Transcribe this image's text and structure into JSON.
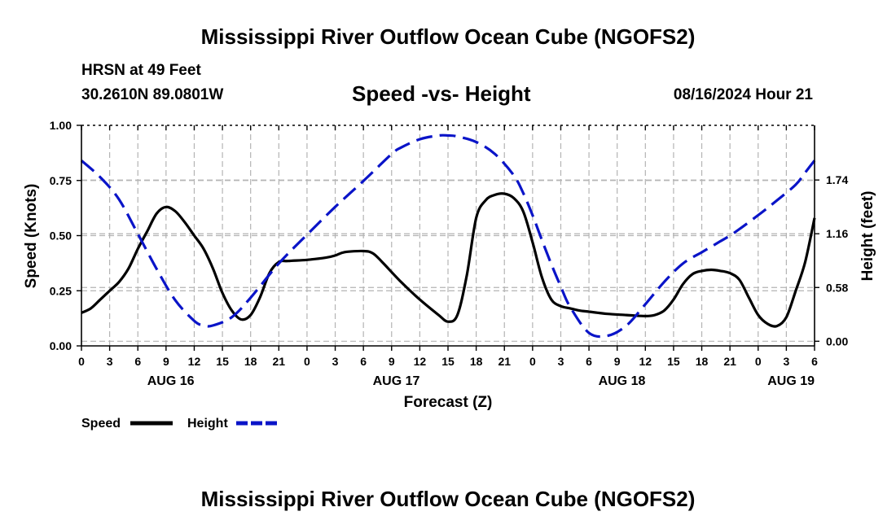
{
  "header": {
    "title": "Mississippi River Outflow Ocean Cube (NGOFS2)",
    "station_name": "HRSN at 49 Feet",
    "station_coords": "30.2610N  89.0801W",
    "date_stamp": "08/16/2024 Hour 21"
  },
  "footer": {
    "title": "Mississippi River Outflow Ocean Cube (NGOFS2)"
  },
  "colors": {
    "speed": "#000000",
    "height": "#0a14c8",
    "grid": "#b4b4b4"
  },
  "chart_data": {
    "type": "line",
    "title": "Speed -vs- Height",
    "xlabel": "Forecast (Z)",
    "ylabel_left": "Speed (Knots)",
    "ylabel_right": "Height (feet)",
    "x_unit": "hours from AUG 16 00Z",
    "xlim": [
      0,
      78
    ],
    "ylim_left": [
      0,
      1.0
    ],
    "ylim_right": [
      -0.05,
      2.33
    ],
    "x_ticks": [
      0,
      3,
      6,
      9,
      12,
      15,
      18,
      21,
      24,
      27,
      30,
      33,
      36,
      39,
      42,
      45,
      48,
      51,
      54,
      57,
      60,
      63,
      66,
      69,
      72,
      75,
      78
    ],
    "x_tick_labels": [
      "0",
      "3",
      "6",
      "9",
      "12",
      "15",
      "18",
      "21",
      "0",
      "3",
      "6",
      "9",
      "12",
      "15",
      "18",
      "21",
      "0",
      "3",
      "6",
      "9",
      "12",
      "15",
      "18",
      "21",
      "0",
      "3",
      "6"
    ],
    "date_labels": [
      {
        "x": 9.5,
        "label": "AUG 16"
      },
      {
        "x": 33.5,
        "label": "AUG 17"
      },
      {
        "x": 57.5,
        "label": "AUG 18"
      },
      {
        "x": 75.5,
        "label": "AUG 19"
      }
    ],
    "y_left_ticks": [
      0.0,
      0.25,
      0.5,
      0.75,
      1.0
    ],
    "y_left_tick_labels": [
      "0.00",
      "0.25",
      "0.50",
      "0.75",
      "1.00"
    ],
    "y_right_ticks": [
      0.0,
      0.58,
      1.16,
      1.74
    ],
    "y_right_tick_labels": [
      "0.00",
      "0.58",
      "1.16",
      "1.74"
    ],
    "legend": [
      {
        "name": "Speed",
        "style": "solid"
      },
      {
        "name": "Height",
        "style": "dashed"
      }
    ],
    "series": [
      {
        "name": "Speed",
        "axis": "left",
        "style": "solid",
        "x": [
          0,
          1,
          2,
          3,
          4,
          5,
          6,
          7,
          8,
          9,
          10,
          11,
          12,
          13,
          14,
          15,
          16,
          17,
          18,
          19,
          20,
          21,
          22,
          24,
          26,
          27,
          28,
          30,
          31,
          32,
          34,
          36,
          38,
          39,
          40,
          41,
          42,
          43,
          44,
          45,
          46,
          47,
          48,
          49,
          50,
          51,
          52,
          53,
          54,
          55,
          56,
          58,
          60,
          61,
          62,
          63,
          64,
          65,
          66,
          67,
          68,
          69,
          70,
          71,
          72,
          73,
          74,
          75,
          76,
          77,
          78
        ],
        "y": [
          0.15,
          0.17,
          0.21,
          0.25,
          0.29,
          0.35,
          0.44,
          0.52,
          0.6,
          0.63,
          0.61,
          0.56,
          0.5,
          0.44,
          0.35,
          0.24,
          0.16,
          0.12,
          0.14,
          0.22,
          0.33,
          0.38,
          0.385,
          0.39,
          0.4,
          0.41,
          0.425,
          0.43,
          0.42,
          0.38,
          0.29,
          0.21,
          0.14,
          0.11,
          0.14,
          0.32,
          0.58,
          0.66,
          0.685,
          0.69,
          0.67,
          0.61,
          0.47,
          0.31,
          0.21,
          0.18,
          0.17,
          0.16,
          0.155,
          0.15,
          0.145,
          0.14,
          0.135,
          0.14,
          0.16,
          0.21,
          0.28,
          0.325,
          0.34,
          0.345,
          0.34,
          0.33,
          0.3,
          0.22,
          0.14,
          0.1,
          0.09,
          0.13,
          0.25,
          0.38,
          0.58
        ]
      },
      {
        "name": "Height",
        "axis": "right",
        "style": "dashed",
        "x": [
          0,
          2,
          4,
          6,
          8,
          10,
          12,
          13,
          14,
          16,
          18,
          21,
          24,
          27,
          30,
          33,
          34,
          36,
          38,
          39,
          40,
          42,
          44,
          46,
          47,
          48,
          49,
          50,
          51,
          52,
          54,
          56,
          58,
          60,
          62,
          64,
          66,
          67,
          68,
          69,
          70,
          72,
          74,
          76,
          77,
          78
        ],
        "y": [
          1.95,
          1.77,
          1.53,
          1.16,
          0.78,
          0.44,
          0.22,
          0.17,
          0.17,
          0.26,
          0.47,
          0.84,
          1.15,
          1.45,
          1.73,
          2.02,
          2.09,
          2.18,
          2.22,
          2.22,
          2.21,
          2.15,
          2.02,
          1.79,
          1.6,
          1.36,
          1.09,
          0.83,
          0.59,
          0.37,
          0.09,
          0.06,
          0.17,
          0.4,
          0.64,
          0.84,
          0.96,
          1.02,
          1.08,
          1.14,
          1.21,
          1.36,
          1.52,
          1.69,
          1.82,
          1.95
        ]
      }
    ]
  }
}
